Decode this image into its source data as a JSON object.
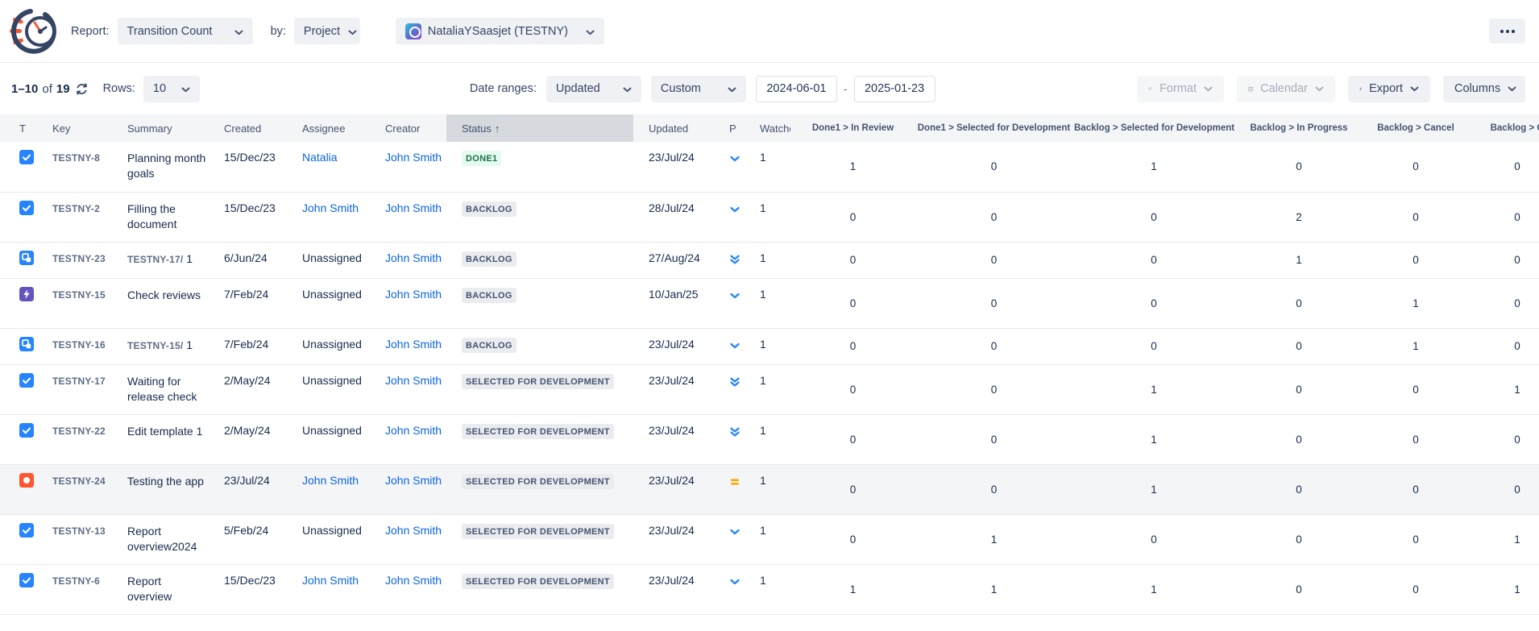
{
  "header": {
    "report_label": "Report:",
    "report_value": "Transition Count",
    "by_label": "by:",
    "by_value": "Project",
    "project_value": "NataliaYSaasjet (TESTNY)"
  },
  "toolbar": {
    "page_range": "1–10",
    "of_label": "of",
    "total": "19",
    "rows_label": "Rows:",
    "rows_value": "10",
    "date_ranges_label": "Date ranges:",
    "date_field_value": "Updated",
    "date_mode_value": "Custom",
    "date_from": "2024-06-01",
    "date_separator": "-",
    "date_to": "2025-01-23",
    "format_label": "Format",
    "calendar_label": "Calendar",
    "export_label": "Export",
    "columns_label": "Columns"
  },
  "table": {
    "sort_indicator": "↑",
    "columns": [
      {
        "id": "t",
        "label": "T"
      },
      {
        "id": "key",
        "label": "Key"
      },
      {
        "id": "summary",
        "label": "Summary"
      },
      {
        "id": "created",
        "label": "Created"
      },
      {
        "id": "assignee",
        "label": "Assignee"
      },
      {
        "id": "creator",
        "label": "Creator"
      },
      {
        "id": "status",
        "label": "Status",
        "sorted": true
      },
      {
        "id": "updated",
        "label": "Updated"
      },
      {
        "id": "p",
        "label": "P"
      },
      {
        "id": "watchers",
        "label": "Watchers"
      },
      {
        "id": "c1",
        "label": "Done1 > In Review",
        "num": true
      },
      {
        "id": "c2",
        "label": "Done1 > Selected for Development",
        "num": true
      },
      {
        "id": "c3",
        "label": "Backlog > Selected for Development",
        "num": true
      },
      {
        "id": "c4",
        "label": "Backlog > In Progress",
        "num": true
      },
      {
        "id": "c5",
        "label": "Backlog > Cancel",
        "num": true
      },
      {
        "id": "c6",
        "label": "Backlog > O",
        "num": true
      }
    ],
    "rows": [
      {
        "type": "task",
        "key": "TESTNY-8",
        "summary": "Planning month goals",
        "created": "15/Dec/23",
        "assignee": "Natalia",
        "assignee_link": true,
        "creator": "John Smith",
        "status": "DONE1",
        "status_kind": "done",
        "updated": "23/Jul/24",
        "priority": "low",
        "watchers": "1",
        "counts": [
          "1",
          "0",
          "1",
          "0",
          "0",
          "0"
        ],
        "highlighted": false,
        "tall": true
      },
      {
        "type": "task",
        "key": "TESTNY-2",
        "summary": "Filling the document",
        "created": "15/Dec/23",
        "assignee": "John Smith",
        "assignee_link": true,
        "creator": "John Smith",
        "status": "BACKLOG",
        "status_kind": "default",
        "updated": "28/Jul/24",
        "priority": "low",
        "watchers": "1",
        "counts": [
          "0",
          "0",
          "0",
          "2",
          "0",
          "0"
        ],
        "highlighted": false,
        "tall": true
      },
      {
        "type": "subtask",
        "key": "TESTNY-23",
        "summary_prefix": "TESTNY-17/",
        "summary": "1",
        "created": "6/Jun/24",
        "assignee": "Unassigned",
        "assignee_link": false,
        "creator": "John Smith",
        "status": "BACKLOG",
        "status_kind": "default",
        "updated": "27/Aug/24",
        "priority": "lowest",
        "watchers": "1",
        "counts": [
          "0",
          "0",
          "0",
          "1",
          "0",
          "0"
        ],
        "highlighted": false,
        "tall": false
      },
      {
        "type": "story",
        "key": "TESTNY-15",
        "summary": "Check reviews",
        "created": "7/Feb/24",
        "assignee": "Unassigned",
        "assignee_link": false,
        "creator": "John Smith",
        "status": "BACKLOG",
        "status_kind": "default",
        "updated": "10/Jan/25",
        "priority": "low",
        "watchers": "1",
        "counts": [
          "0",
          "0",
          "0",
          "0",
          "1",
          "0"
        ],
        "highlighted": false,
        "tall": true
      },
      {
        "type": "subtask",
        "key": "TESTNY-16",
        "summary_prefix": "TESTNY-15/",
        "summary": "1",
        "created": "7/Feb/24",
        "assignee": "Unassigned",
        "assignee_link": false,
        "creator": "John Smith",
        "status": "BACKLOG",
        "status_kind": "default",
        "updated": "23/Jul/24",
        "priority": "low",
        "watchers": "1",
        "counts": [
          "0",
          "0",
          "0",
          "0",
          "1",
          "0"
        ],
        "highlighted": false,
        "tall": false
      },
      {
        "type": "task",
        "key": "TESTNY-17",
        "summary": "Waiting for release check",
        "created": "2/May/24",
        "assignee": "Unassigned",
        "assignee_link": false,
        "creator": "John Smith",
        "status": "SELECTED FOR DEVELOPMENT",
        "status_kind": "default",
        "updated": "23/Jul/24",
        "priority": "lowest",
        "watchers": "1",
        "counts": [
          "0",
          "0",
          "1",
          "0",
          "0",
          "1"
        ],
        "highlighted": false,
        "tall": true
      },
      {
        "type": "task",
        "key": "TESTNY-22",
        "summary": "Edit template 1",
        "created": "2/May/24",
        "assignee": "Unassigned",
        "assignee_link": false,
        "creator": "John Smith",
        "status": "SELECTED FOR DEVELOPMENT",
        "status_kind": "default",
        "updated": "23/Jul/24",
        "priority": "lowest",
        "watchers": "1",
        "counts": [
          "0",
          "0",
          "1",
          "0",
          "0",
          "0"
        ],
        "highlighted": false,
        "tall": true
      },
      {
        "type": "bug",
        "key": "TESTNY-24",
        "summary": "Testing the app",
        "created": "23/Jul/24",
        "assignee": "John Smith",
        "assignee_link": true,
        "creator": "John Smith",
        "status": "SELECTED FOR DEVELOPMENT",
        "status_kind": "default",
        "updated": "23/Jul/24",
        "priority": "medium",
        "watchers": "1",
        "counts": [
          "0",
          "0",
          "1",
          "0",
          "0",
          "0"
        ],
        "highlighted": true,
        "tall": true
      },
      {
        "type": "task",
        "key": "TESTNY-13",
        "summary": "Report overview2024",
        "created": "5/Feb/24",
        "assignee": "Unassigned",
        "assignee_link": false,
        "creator": "John Smith",
        "status": "SELECTED FOR DEVELOPMENT",
        "status_kind": "default",
        "updated": "23/Jul/24",
        "priority": "low",
        "watchers": "1",
        "counts": [
          "0",
          "1",
          "0",
          "0",
          "0",
          "1"
        ],
        "highlighted": false,
        "tall": true
      },
      {
        "type": "task",
        "key": "TESTNY-6",
        "summary": "Report overview",
        "created": "15/Dec/23",
        "assignee": "John Smith",
        "assignee_link": true,
        "creator": "John Smith",
        "status": "SELECTED FOR DEVELOPMENT",
        "status_kind": "default",
        "updated": "23/Jul/24",
        "priority": "low",
        "watchers": "1",
        "counts": [
          "1",
          "1",
          "1",
          "0",
          "0",
          "1"
        ],
        "highlighted": false,
        "tall": true
      }
    ]
  },
  "colors": {
    "link": "#0C66E4",
    "type_task": "#2684FF",
    "type_subtask": "#2684FF",
    "type_story": "#6554C0",
    "type_bug": "#FF5630",
    "priority_low": "#2684FF",
    "priority_medium": "#FFAB00",
    "badge_done_bg": "#E3FCEF",
    "badge_done_text": "#216E4E",
    "badge_default_bg": "#EBECF0",
    "badge_default_text": "#44546F",
    "sorted_header_bg": "#D6D9DD",
    "header_bg": "#F4F5F7"
  }
}
